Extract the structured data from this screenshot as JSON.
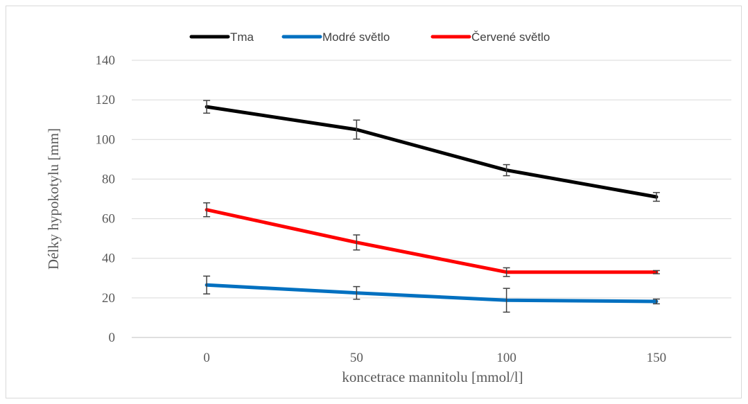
{
  "chart_data": {
    "type": "line",
    "x": [
      0,
      50,
      100,
      150
    ],
    "xlabel": "koncetrace mannitolu [mmol/l]",
    "ylabel": "Délky hypokotylu [mm]",
    "ylim": [
      0,
      140
    ],
    "yticks": [
      0,
      20,
      40,
      60,
      80,
      100,
      120,
      140
    ],
    "grid": true,
    "legend_position": "top",
    "series": [
      {
        "name": "Tma",
        "color": "#000000",
        "values": [
          116.5,
          105,
          84.5,
          71
        ],
        "errors": [
          3.2,
          4.8,
          2.8,
          2.2
        ]
      },
      {
        "name": "Modré světlo",
        "color": "#0070c0",
        "values": [
          26.5,
          22.5,
          18.8,
          18.2
        ],
        "errors": [
          4.5,
          3.2,
          6,
          1.2
        ]
      },
      {
        "name": "Červené světlo",
        "color": "#ff0000",
        "values": [
          64.5,
          48,
          33,
          33
        ],
        "errors": [
          3.5,
          3.8,
          2.2,
          0.8
        ]
      }
    ]
  }
}
